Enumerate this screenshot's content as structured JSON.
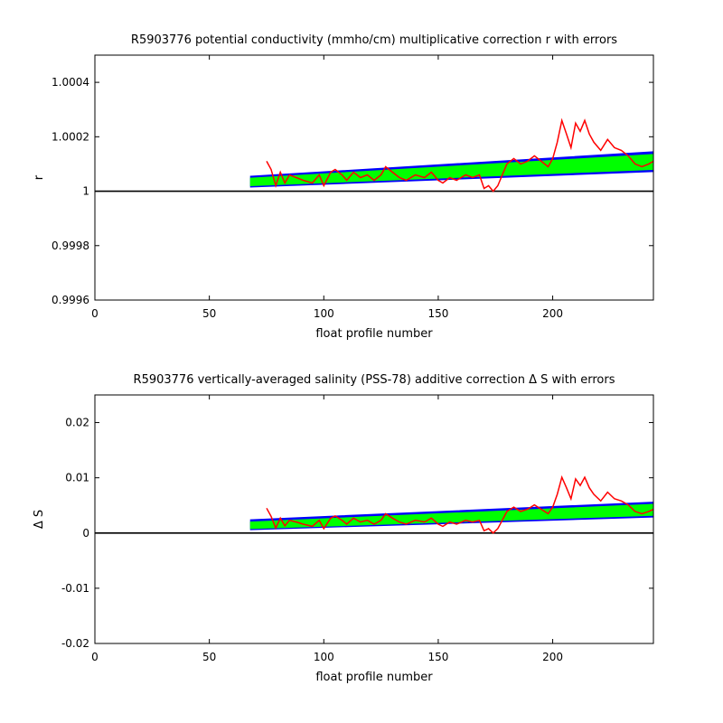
{
  "chart_data": [
    {
      "type": "line",
      "title": "R5903776 potential conductivity (mmho/cm) multiplicative correction r with errors",
      "xlabel": "float profile number",
      "ylabel": "r",
      "xlim": [
        0,
        244
      ],
      "ylim": [
        0.9996,
        1.0005
      ],
      "xticks": [
        0,
        50,
        100,
        150,
        200
      ],
      "xtick_labels": [
        "0",
        "50",
        "100",
        "150",
        "200"
      ],
      "yticks": [
        0.9996,
        0.9998,
        1.0,
        1.0002,
        1.0004
      ],
      "ytick_labels": [
        "0.9996",
        "0.9998",
        "1",
        "1.0002",
        "1.0004"
      ],
      "reference_line": 1.0,
      "colors": {
        "error_band": "#0000ff",
        "fit_band": "#00ff00",
        "data_line": "#ff0000",
        "reference": "#000000"
      },
      "bands": [
        {
          "x": [
            68,
            244
          ],
          "lower": [
            1.000015,
            1.000072
          ],
          "upper": [
            1.000055,
            1.000145
          ],
          "color": "#0000ff"
        },
        {
          "x": [
            68,
            244
          ],
          "lower": [
            1.00002,
            1.00008
          ],
          "upper": [
            1.000048,
            1.000135
          ],
          "color": "#00ff00"
        }
      ],
      "series": [
        {
          "color": "#ff0000",
          "x": [
            75,
            77,
            79,
            81,
            83,
            85,
            88,
            91,
            95,
            98,
            100,
            103,
            105,
            108,
            110,
            113,
            116,
            119,
            122,
            125,
            127,
            130,
            133,
            136,
            140,
            144,
            147,
            150,
            152,
            155,
            158,
            162,
            165,
            168,
            170,
            172,
            174,
            176,
            178,
            180,
            183,
            186,
            189,
            192,
            195,
            198,
            200,
            202,
            204,
            206,
            208,
            210,
            212,
            214,
            216,
            218,
            221,
            224,
            227,
            230,
            233,
            236,
            239,
            242,
            244
          ],
          "y": [
            1.00011,
            1.00008,
            1.00002,
            1.00007,
            1.00003,
            1.00006,
            1.00005,
            1.00004,
            1.00003,
            1.00006,
            1.00002,
            1.00007,
            1.00008,
            1.00006,
            1.00004,
            1.00007,
            1.00005,
            1.00006,
            1.00004,
            1.00006,
            1.00009,
            1.00007,
            1.00005,
            1.00004,
            1.00006,
            1.00005,
            1.00007,
            1.00004,
            1.00003,
            1.00005,
            1.00004,
            1.00006,
            1.00005,
            1.00006,
            1.00001,
            1.00002,
            1.0,
            1.00002,
            1.00006,
            1.0001,
            1.00012,
            1.0001,
            1.00011,
            1.00013,
            1.00011,
            1.00009,
            1.00012,
            1.00018,
            1.00026,
            1.00021,
            1.00016,
            1.00025,
            1.00022,
            1.00026,
            1.00021,
            1.00018,
            1.00015,
            1.00019,
            1.00016,
            1.00015,
            1.00013,
            1.0001,
            1.00009,
            1.0001,
            1.00011
          ]
        }
      ]
    },
    {
      "type": "line",
      "title": "R5903776 vertically-averaged salinity (PSS-78) additive correction Δ S with errors",
      "xlabel": "float profile number",
      "ylabel": "Δ S",
      "xlim": [
        0,
        244
      ],
      "ylim": [
        -0.02,
        0.025
      ],
      "xticks": [
        0,
        50,
        100,
        150,
        200
      ],
      "xtick_labels": [
        "0",
        "50",
        "100",
        "150",
        "200"
      ],
      "yticks": [
        -0.02,
        -0.01,
        0,
        0.01,
        0.02
      ],
      "ytick_labels": [
        "-0.02",
        "-0.01",
        "0",
        "0.01",
        "0.02"
      ],
      "reference_line": 0,
      "colors": {
        "error_band": "#0000ff",
        "fit_band": "#00ff00",
        "data_line": "#ff0000",
        "reference": "#000000"
      },
      "bands": [
        {
          "x": [
            68,
            244
          ],
          "lower": [
            0.0006,
            0.0029
          ],
          "upper": [
            0.0024,
            0.0056
          ],
          "color": "#0000ff"
        },
        {
          "x": [
            68,
            244
          ],
          "lower": [
            0.0008,
            0.0032
          ],
          "upper": [
            0.002,
            0.0052
          ],
          "color": "#00ff00"
        }
      ],
      "series": [
        {
          "color": "#ff0000",
          "x": [
            75,
            77,
            79,
            81,
            83,
            85,
            88,
            91,
            95,
            98,
            100,
            103,
            105,
            108,
            110,
            113,
            116,
            119,
            122,
            125,
            127,
            130,
            133,
            136,
            140,
            144,
            147,
            150,
            152,
            155,
            158,
            162,
            165,
            168,
            170,
            172,
            174,
            176,
            178,
            180,
            183,
            186,
            189,
            192,
            195,
            198,
            200,
            202,
            204,
            206,
            208,
            210,
            212,
            214,
            216,
            218,
            221,
            224,
            227,
            230,
            233,
            236,
            239,
            242,
            244
          ],
          "y": [
            0.0045,
            0.003,
            0.0009,
            0.0027,
            0.0013,
            0.0023,
            0.002,
            0.0016,
            0.0012,
            0.0023,
            0.0008,
            0.0027,
            0.0031,
            0.0023,
            0.0016,
            0.0027,
            0.002,
            0.0023,
            0.0016,
            0.0023,
            0.0035,
            0.0027,
            0.002,
            0.0016,
            0.0023,
            0.002,
            0.0027,
            0.0016,
            0.0012,
            0.002,
            0.0016,
            0.0023,
            0.002,
            0.0023,
            0.0004,
            0.0008,
            0.0,
            0.0008,
            0.0023,
            0.0039,
            0.0047,
            0.0039,
            0.0043,
            0.0051,
            0.0043,
            0.0035,
            0.0047,
            0.007,
            0.0101,
            0.0082,
            0.0062,
            0.0098,
            0.0086,
            0.0101,
            0.0082,
            0.007,
            0.0058,
            0.0074,
            0.0062,
            0.0058,
            0.0051,
            0.0039,
            0.0035,
            0.0039,
            0.0043
          ]
        }
      ]
    }
  ]
}
